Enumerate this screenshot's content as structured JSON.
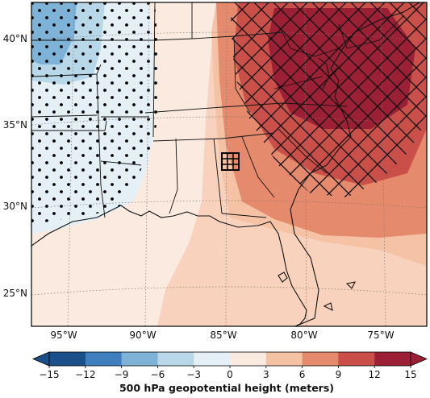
{
  "map": {
    "latitude_labels": [
      "40°N",
      "35°N",
      "30°N",
      "25°N"
    ],
    "longitude_labels": [
      "95°W",
      "90°W",
      "85°W",
      "80°W",
      "75°W"
    ],
    "stippling_pattern": "dots",
    "hatching_pattern": "cross-hatch",
    "marker_icon": "grid-box-icon"
  },
  "colorbar": {
    "title": "500 hPa geopotential height (meters)",
    "tick_labels": [
      "−15",
      "−12",
      "−9",
      "−6",
      "−3",
      "0",
      "3",
      "6",
      "9",
      "12",
      "15"
    ],
    "colors": [
      "#1a4f8a",
      "#3f7fbd",
      "#7fb2d7",
      "#b8d7e9",
      "#e4eff6",
      "#fbeadf",
      "#f5c1a3",
      "#e58a6c",
      "#c94f48",
      "#9c2035"
    ],
    "extend": "both"
  }
}
